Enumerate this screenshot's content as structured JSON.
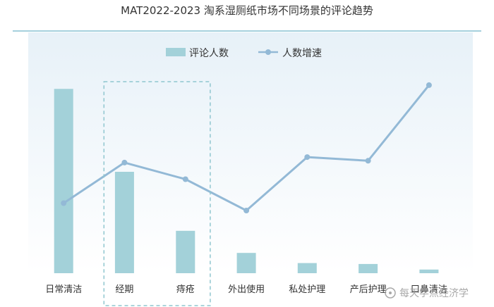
{
  "colors": {
    "bar": "#a3d1d9",
    "line": "#93b9d6",
    "highlight_box": "#8fc6cf",
    "plot_gradient_top": "#e7f1f8",
    "plot_gradient_bottom": "#ffffff",
    "top_rule": "#a5d0dd"
  },
  "watermark": {
    "text": "每天学点经济学"
  },
  "chart_data": {
    "type": "bar",
    "title": "MAT2022-2023 淘系湿厕纸市场不同场景的评论趋势",
    "categories": [
      "日常清洁",
      "经期",
      "痔疮",
      "外出使用",
      "私处护理",
      "产后护理",
      "口鼻清洁"
    ],
    "series": [
      {
        "name": "评论人数",
        "kind": "bar",
        "values": [
          100,
          55,
          23,
          11,
          5.5,
          5,
          2
        ]
      },
      {
        "name": "人数增速",
        "kind": "line",
        "values": [
          38,
          60,
          51,
          34,
          63,
          61,
          102
        ]
      }
    ],
    "ylim": [
      0,
      110
    ],
    "legend_position": "top-center",
    "highlight_categories": [
      "经期",
      "痔疮"
    ],
    "grid": false
  }
}
